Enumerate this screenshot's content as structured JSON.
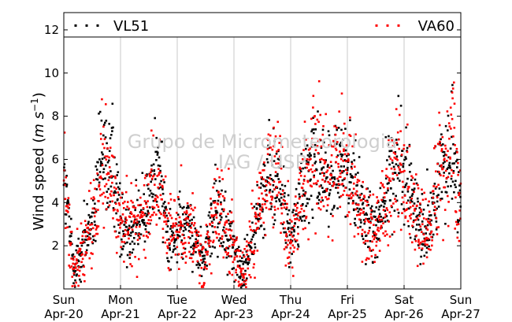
{
  "chart_data": {
    "type": "scatter",
    "ylabel": "Wind speed",
    "ylabel_unit_base": "m s",
    "ylabel_unit_exp": "−1",
    "ylim": [
      0,
      12.8
    ],
    "yticks": [
      2,
      4,
      6,
      8,
      10,
      12
    ],
    "xlim": [
      0,
      7
    ],
    "xticks": [
      {
        "day": "Sun",
        "date": "Apr-20"
      },
      {
        "day": "Mon",
        "date": "Apr-21"
      },
      {
        "day": "Tue",
        "date": "Apr-22"
      },
      {
        "day": "Wed",
        "date": "Apr-23"
      },
      {
        "day": "Thu",
        "date": "Apr-24"
      },
      {
        "day": "Fri",
        "date": "Apr-25"
      },
      {
        "day": "Sat",
        "date": "Apr-26"
      },
      {
        "day": "Sun",
        "date": "Apr-27"
      }
    ],
    "grid": "vertical",
    "legend_position": "top",
    "watermark": [
      "Grupo de Micrometeorologia",
      "IAG / USP"
    ],
    "series": [
      {
        "name": "VL51",
        "color": "#000000",
        "profile": [
          [
            0.0,
            5.5
          ],
          [
            0.1,
            2.5
          ],
          [
            0.2,
            0.8
          ],
          [
            0.35,
            2.3
          ],
          [
            0.5,
            2.8
          ],
          [
            0.65,
            6.0
          ],
          [
            0.85,
            5.5
          ],
          [
            1.0,
            3.2
          ],
          [
            1.25,
            2.7
          ],
          [
            1.45,
            3.7
          ],
          [
            1.65,
            5.8
          ],
          [
            1.85,
            2.6
          ],
          [
            2.25,
            2.7
          ],
          [
            2.45,
            1.2
          ],
          [
            2.7,
            3.8
          ],
          [
            2.95,
            2.3
          ],
          [
            3.15,
            0.7
          ],
          [
            3.35,
            2.5
          ],
          [
            3.6,
            5.3
          ],
          [
            3.8,
            4.8
          ],
          [
            4.0,
            2.2
          ],
          [
            4.25,
            4.8
          ],
          [
            4.45,
            5.7
          ],
          [
            4.65,
            4.8
          ],
          [
            4.9,
            6.0
          ],
          [
            5.05,
            5.2
          ],
          [
            5.25,
            3.5
          ],
          [
            5.5,
            2.9
          ],
          [
            5.65,
            4.0
          ],
          [
            5.9,
            6.3
          ],
          [
            6.1,
            4.5
          ],
          [
            6.25,
            3.3
          ],
          [
            6.4,
            2.6
          ],
          [
            6.65,
            5.2
          ],
          [
            6.85,
            6.5
          ],
          [
            7.0,
            3.8
          ]
        ]
      },
      {
        "name": "VA60",
        "color": "#ff0000",
        "profile": [
          [
            0.0,
            5.2
          ],
          [
            0.1,
            2.3
          ],
          [
            0.2,
            0.7
          ],
          [
            0.35,
            2.1
          ],
          [
            0.5,
            2.6
          ],
          [
            0.65,
            5.6
          ],
          [
            0.85,
            5.0
          ],
          [
            1.0,
            3.0
          ],
          [
            1.25,
            2.5
          ],
          [
            1.45,
            3.4
          ],
          [
            1.65,
            5.0
          ],
          [
            1.85,
            2.4
          ],
          [
            2.25,
            2.5
          ],
          [
            2.45,
            1.1
          ],
          [
            2.7,
            3.6
          ],
          [
            2.95,
            2.1
          ],
          [
            3.15,
            0.6
          ],
          [
            3.35,
            2.3
          ],
          [
            3.6,
            5.6
          ],
          [
            3.8,
            5.0
          ],
          [
            4.0,
            2.0
          ],
          [
            4.25,
            5.0
          ],
          [
            4.45,
            6.0
          ],
          [
            4.65,
            5.2
          ],
          [
            4.9,
            6.3
          ],
          [
            5.05,
            5.4
          ],
          [
            5.25,
            3.3
          ],
          [
            5.5,
            2.7
          ],
          [
            5.65,
            3.7
          ],
          [
            5.9,
            6.0
          ],
          [
            6.1,
            4.2
          ],
          [
            6.25,
            3.0
          ],
          [
            6.4,
            2.4
          ],
          [
            6.65,
            5.5
          ],
          [
            6.85,
            6.8
          ],
          [
            7.0,
            3.6
          ]
        ]
      }
    ]
  }
}
